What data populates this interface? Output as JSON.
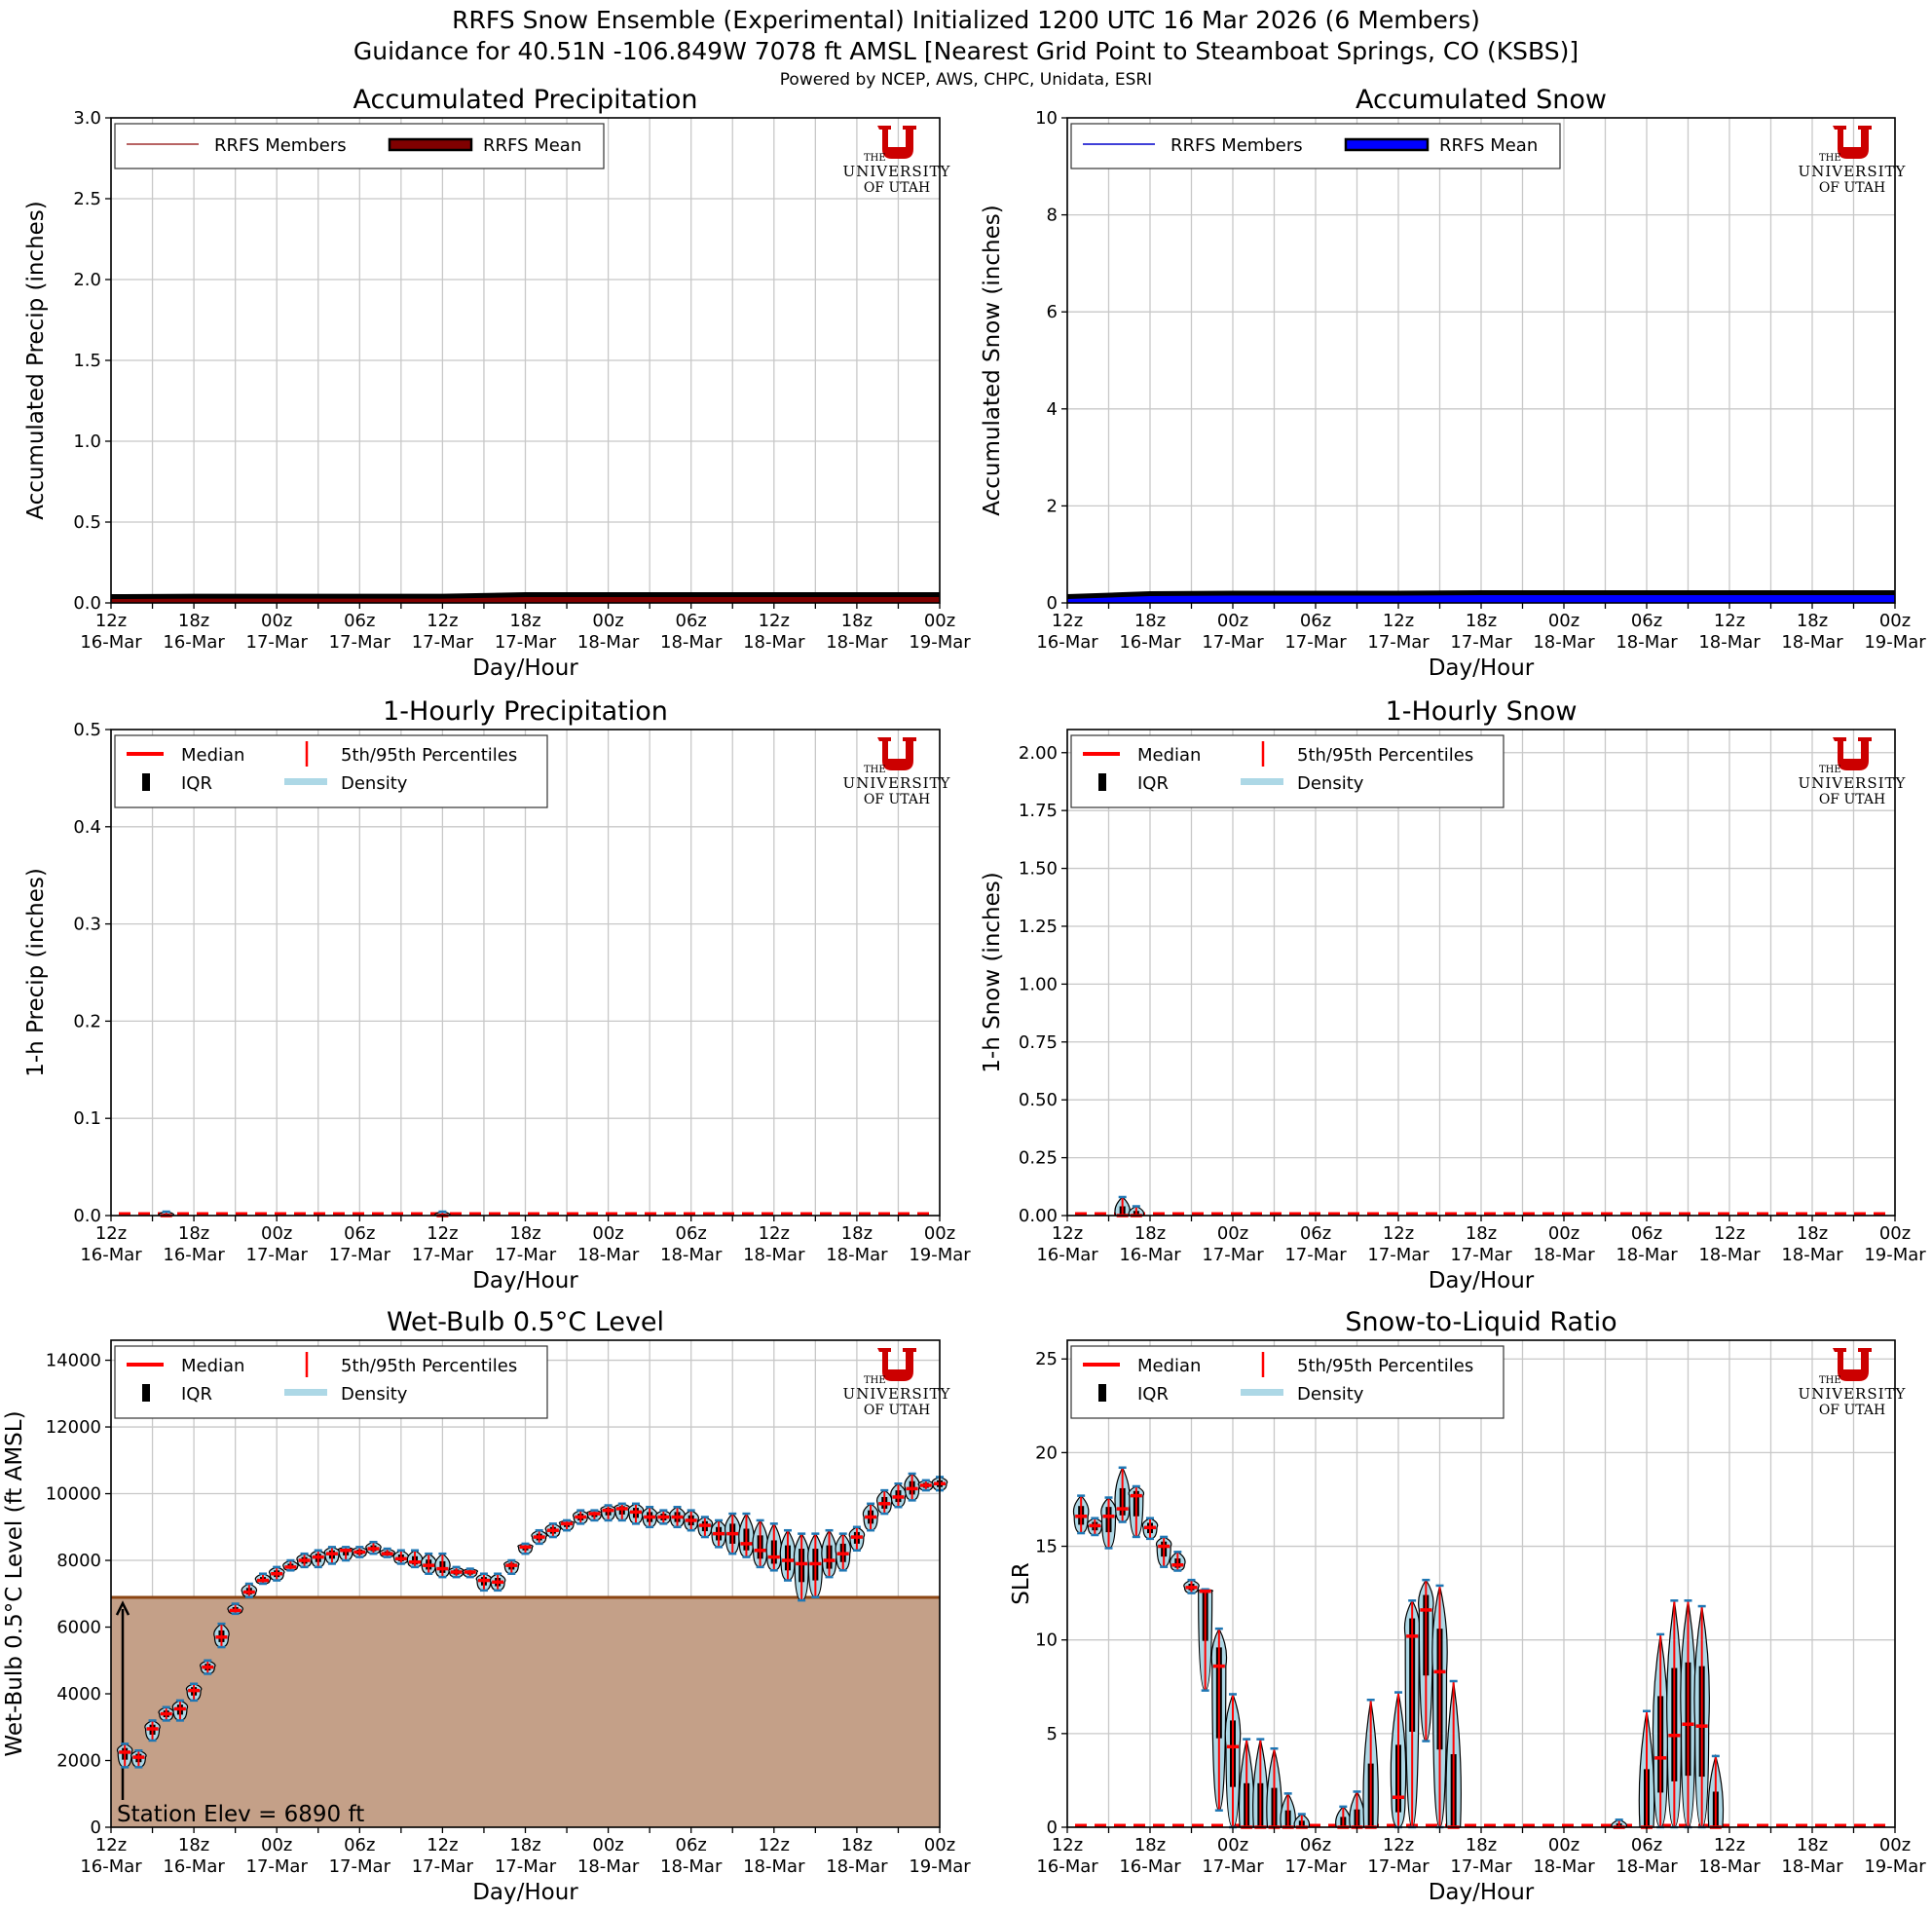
{
  "header": {
    "title_line1": "RRFS Snow Ensemble (Experimental) Initialized 1200 UTC 16 Mar 2026 (6 Members)",
    "title_line2": "Guidance for 40.51N -106.849W 7078 ft AMSL [Nearest Grid Point to Steamboat Springs, CO (KSBS)]",
    "credits": "Powered by NCEP, AWS, CHPC, Unidata, ESRI"
  },
  "logo": {
    "the": "THE",
    "university": "UNIVERSITY",
    "of_utah": "OF UTAH",
    "color": "#cc0000"
  },
  "x_axis": {
    "label": "Day/Hour",
    "ticks": [
      {
        "hour": "12z",
        "day": "16-Mar"
      },
      {
        "hour": "18z",
        "day": "16-Mar"
      },
      {
        "hour": "00z",
        "day": "17-Mar"
      },
      {
        "hour": "06z",
        "day": "17-Mar"
      },
      {
        "hour": "12z",
        "day": "17-Mar"
      },
      {
        "hour": "18z",
        "day": "17-Mar"
      },
      {
        "hour": "00z",
        "day": "18-Mar"
      },
      {
        "hour": "06z",
        "day": "18-Mar"
      },
      {
        "hour": "12z",
        "day": "18-Mar"
      },
      {
        "hour": "18z",
        "day": "18-Mar"
      },
      {
        "hour": "00z",
        "day": "19-Mar"
      }
    ],
    "range_hours": [
      0,
      60
    ]
  },
  "violin_legend": {
    "median": "Median",
    "percentiles": "5th/95th Percentiles",
    "iqr": "IQR",
    "density": "Density"
  },
  "colors": {
    "precip_mean": "#800000",
    "precip_members": "#a03030",
    "snow_mean": "#0000ff",
    "snow_members": "#0000cc",
    "median": "#ff0000",
    "density": "#add8e6",
    "whisker": "#1f77b4",
    "terrain": "#c4a088",
    "terrain_line": "#8b4513",
    "grid": "#c8c8c8"
  },
  "chart_data": [
    {
      "id": "accum_precip",
      "type": "area",
      "title": "Accumulated Precipitation",
      "xlabel": "Day/Hour",
      "ylabel": "Accumulated Precip (inches)",
      "ylim": [
        0,
        3.0
      ],
      "yticks": [
        "0.0",
        "0.5",
        "1.0",
        "1.5",
        "2.0",
        "2.5",
        "3.0"
      ],
      "ytick_values": [
        0,
        0.5,
        1,
        1.5,
        2,
        2.5,
        3
      ],
      "legend": [
        "RRFS Members",
        "RRFS Mean"
      ],
      "series": [
        {
          "name": "RRFS Mean",
          "x": [
            0,
            6,
            12,
            18,
            24,
            30,
            36,
            42,
            48,
            54,
            60
          ],
          "values": [
            0.0,
            0.02,
            0.02,
            0.02,
            0.02,
            0.03,
            0.03,
            0.03,
            0.03,
            0.03,
            0.03
          ]
        }
      ]
    },
    {
      "id": "accum_snow",
      "type": "area",
      "title": "Accumulated Snow",
      "xlabel": "Day/Hour",
      "ylabel": "Accumulated Snow (inches)",
      "ylim": [
        0,
        10
      ],
      "yticks": [
        "0",
        "2",
        "4",
        "6",
        "8",
        "10"
      ],
      "ytick_values": [
        0,
        2,
        4,
        6,
        8,
        10
      ],
      "legend": [
        "RRFS Members",
        "RRFS Mean"
      ],
      "series": [
        {
          "name": "RRFS Mean",
          "x": [
            0,
            4,
            6,
            12,
            18,
            24,
            30,
            36,
            42,
            48,
            54,
            60
          ],
          "values": [
            0.0,
            0.1,
            0.12,
            0.13,
            0.13,
            0.13,
            0.14,
            0.14,
            0.14,
            0.14,
            0.14,
            0.14
          ]
        }
      ]
    },
    {
      "id": "hourly_precip",
      "type": "violin",
      "title": "1-Hourly Precipitation",
      "xlabel": "Day/Hour",
      "ylabel": "1-h Precip (inches)",
      "ylim": [
        0,
        0.5
      ],
      "yticks": [
        "0.0",
        "0.1",
        "0.2",
        "0.3",
        "0.4",
        "0.5"
      ],
      "ytick_values": [
        0,
        0.1,
        0.2,
        0.3,
        0.4,
        0.5
      ],
      "legend": [
        "Median",
        "5th/95th Percentiles",
        "IQR",
        "Density"
      ],
      "points": [
        {
          "x": 4,
          "median": 0,
          "p95": 0.004
        },
        {
          "x": 5,
          "median": 0,
          "p95": 0.002
        },
        {
          "x": 23,
          "median": 0,
          "p95": 0.002
        },
        {
          "x": 24,
          "median": 0,
          "p95": 0.004
        }
      ]
    },
    {
      "id": "hourly_snow",
      "type": "violin",
      "title": "1-Hourly Snow",
      "xlabel": "Day/Hour",
      "ylabel": "1-h Snow (inches)",
      "ylim": [
        0,
        2.1
      ],
      "yticks": [
        "0.00",
        "0.25",
        "0.50",
        "0.75",
        "1.00",
        "1.25",
        "1.50",
        "1.75",
        "2.00"
      ],
      "ytick_values": [
        0,
        0.25,
        0.5,
        0.75,
        1.0,
        1.25,
        1.5,
        1.75,
        2.0
      ],
      "legend": [
        "Median",
        "5th/95th Percentiles",
        "IQR",
        "Density"
      ],
      "points": [
        {
          "x": 4,
          "median": 0,
          "p95": 0.08
        },
        {
          "x": 5,
          "median": 0,
          "p95": 0.04
        }
      ]
    },
    {
      "id": "wetbulb",
      "type": "violin",
      "title": "Wet-Bulb 0.5°C Level",
      "xlabel": "Day/Hour",
      "ylabel": "Wet-Bulb 0.5°C Level (ft AMSL)",
      "ylim": [
        0,
        14600
      ],
      "yticks": [
        "0",
        "2000",
        "4000",
        "6000",
        "8000",
        "10000",
        "12000",
        "14000"
      ],
      "ytick_values": [
        0,
        2000,
        4000,
        6000,
        8000,
        10000,
        12000,
        14000
      ],
      "legend": [
        "Median",
        "5th/95th Percentiles",
        "IQR",
        "Density"
      ],
      "annotation": "Station Elev = 6890 ft",
      "station_elev": 6890,
      "points": [
        {
          "x": 1,
          "median": 2250,
          "lo": 1800,
          "hi": 2500
        },
        {
          "x": 2,
          "median": 2100,
          "lo": 1800,
          "hi": 2300
        },
        {
          "x": 3,
          "median": 2950,
          "lo": 2600,
          "hi": 3200
        },
        {
          "x": 4,
          "median": 3400,
          "lo": 3200,
          "hi": 3600
        },
        {
          "x": 5,
          "median": 3550,
          "lo": 3200,
          "hi": 3800
        },
        {
          "x": 6,
          "median": 4100,
          "lo": 3800,
          "hi": 4300
        },
        {
          "x": 7,
          "median": 4800,
          "lo": 4600,
          "hi": 5000
        },
        {
          "x": 8,
          "median": 5700,
          "lo": 5400,
          "hi": 6100
        },
        {
          "x": 9,
          "median": 6500,
          "lo": 6400,
          "hi": 6700
        },
        {
          "x": 10,
          "median": 7050,
          "lo": 6900,
          "hi": 7300
        },
        {
          "x": 11,
          "median": 7400,
          "lo": 7300,
          "hi": 7600
        },
        {
          "x": 12,
          "median": 7600,
          "lo": 7400,
          "hi": 7800
        },
        {
          "x": 13,
          "median": 7800,
          "lo": 7700,
          "hi": 8000
        },
        {
          "x": 14,
          "median": 8000,
          "lo": 7800,
          "hi": 8200
        },
        {
          "x": 15,
          "median": 8100,
          "lo": 7800,
          "hi": 8300
        },
        {
          "x": 16,
          "median": 8200,
          "lo": 7900,
          "hi": 8400
        },
        {
          "x": 17,
          "median": 8300,
          "lo": 8000,
          "hi": 8400
        },
        {
          "x": 18,
          "median": 8250,
          "lo": 8100,
          "hi": 8400
        },
        {
          "x": 19,
          "median": 8350,
          "lo": 8200,
          "hi": 8550
        },
        {
          "x": 20,
          "median": 8200,
          "lo": 8100,
          "hi": 8350
        },
        {
          "x": 21,
          "median": 8050,
          "lo": 7900,
          "hi": 8300
        },
        {
          "x": 22,
          "median": 7950,
          "lo": 7800,
          "hi": 8300
        },
        {
          "x": 23,
          "median": 7850,
          "lo": 7600,
          "hi": 8200
        },
        {
          "x": 24,
          "median": 7750,
          "lo": 7500,
          "hi": 8200
        },
        {
          "x": 25,
          "median": 7650,
          "lo": 7500,
          "hi": 7800
        },
        {
          "x": 26,
          "median": 7650,
          "lo": 7500,
          "hi": 7750
        },
        {
          "x": 27,
          "median": 7400,
          "lo": 7100,
          "hi": 7600
        },
        {
          "x": 28,
          "median": 7350,
          "lo": 7100,
          "hi": 7600
        },
        {
          "x": 29,
          "median": 7850,
          "lo": 7600,
          "hi": 8000
        },
        {
          "x": 30,
          "median": 8400,
          "lo": 8200,
          "hi": 8500
        },
        {
          "x": 31,
          "median": 8700,
          "lo": 8500,
          "hi": 8900
        },
        {
          "x": 32,
          "median": 8900,
          "lo": 8700,
          "hi": 9100
        },
        {
          "x": 33,
          "median": 9100,
          "lo": 8900,
          "hi": 9200
        },
        {
          "x": 34,
          "median": 9300,
          "lo": 9100,
          "hi": 9500
        },
        {
          "x": 35,
          "median": 9400,
          "lo": 9200,
          "hi": 9500
        },
        {
          "x": 36,
          "median": 9500,
          "lo": 9200,
          "hi": 9650
        },
        {
          "x": 37,
          "median": 9550,
          "lo": 9200,
          "hi": 9700
        },
        {
          "x": 38,
          "median": 9450,
          "lo": 9100,
          "hi": 9700
        },
        {
          "x": 39,
          "median": 9300,
          "lo": 9000,
          "hi": 9600
        },
        {
          "x": 40,
          "median": 9300,
          "lo": 9100,
          "hi": 9500
        },
        {
          "x": 41,
          "median": 9300,
          "lo": 9000,
          "hi": 9600
        },
        {
          "x": 42,
          "median": 9200,
          "lo": 8900,
          "hi": 9500
        },
        {
          "x": 43,
          "median": 9050,
          "lo": 8700,
          "hi": 9300
        },
        {
          "x": 44,
          "median": 8800,
          "lo": 8400,
          "hi": 9200
        },
        {
          "x": 45,
          "median": 8800,
          "lo": 8200,
          "hi": 9400
        },
        {
          "x": 46,
          "median": 8500,
          "lo": 8100,
          "hi": 9400
        },
        {
          "x": 47,
          "median": 8300,
          "lo": 7800,
          "hi": 9200
        },
        {
          "x": 48,
          "median": 8100,
          "lo": 7700,
          "hi": 9100
        },
        {
          "x": 49,
          "median": 8000,
          "lo": 7400,
          "hi": 8900
        },
        {
          "x": 50,
          "median": 7900,
          "lo": 6800,
          "hi": 8800
        },
        {
          "x": 51,
          "median": 7900,
          "lo": 6900,
          "hi": 8800
        },
        {
          "x": 52,
          "median": 8000,
          "lo": 7500,
          "hi": 8900
        },
        {
          "x": 53,
          "median": 8200,
          "lo": 7700,
          "hi": 8800
        },
        {
          "x": 54,
          "median": 8700,
          "lo": 8300,
          "hi": 9000
        },
        {
          "x": 55,
          "median": 9300,
          "lo": 8900,
          "hi": 9700
        },
        {
          "x": 56,
          "median": 9700,
          "lo": 9400,
          "hi": 10100
        },
        {
          "x": 57,
          "median": 9900,
          "lo": 9600,
          "hi": 10300
        },
        {
          "x": 58,
          "median": 10150,
          "lo": 9800,
          "hi": 10600
        },
        {
          "x": 59,
          "median": 10250,
          "lo": 10100,
          "hi": 10400
        },
        {
          "x": 60,
          "median": 10300,
          "lo": 10100,
          "hi": 10500
        }
      ]
    },
    {
      "id": "slr",
      "type": "violin",
      "title": "Snow-to-Liquid Ratio",
      "xlabel": "Day/Hour",
      "ylabel": "SLR",
      "ylim": [
        0,
        26
      ],
      "yticks": [
        "0",
        "5",
        "10",
        "15",
        "20",
        "25"
      ],
      "ytick_values": [
        0,
        5,
        10,
        15,
        20,
        25
      ],
      "legend": [
        "Median",
        "5th/95th Percentiles",
        "IQR",
        "Density"
      ],
      "points": [
        {
          "x": 1,
          "median": 16.6,
          "lo": 15.7,
          "hi": 17.7
        },
        {
          "x": 2,
          "median": 16.1,
          "lo": 15.6,
          "hi": 16.5
        },
        {
          "x": 3,
          "median": 16.6,
          "lo": 14.9,
          "hi": 17.6
        },
        {
          "x": 4,
          "median": 17.0,
          "lo": 16.3,
          "hi": 19.2
        },
        {
          "x": 5,
          "median": 17.7,
          "lo": 15.5,
          "hi": 18.2
        },
        {
          "x": 6,
          "median": 16.0,
          "lo": 15.4,
          "hi": 16.5
        },
        {
          "x": 7,
          "median": 15.0,
          "lo": 13.9,
          "hi": 15.5
        },
        {
          "x": 8,
          "median": 14.0,
          "lo": 13.7,
          "hi": 14.7
        },
        {
          "x": 9,
          "median": 12.8,
          "lo": 12.5,
          "hi": 13.2
        },
        {
          "x": 10,
          "median": 12.6,
          "lo": 7.3,
          "hi": 12.7
        },
        {
          "x": 11,
          "median": 8.6,
          "lo": 0.9,
          "hi": 10.6
        },
        {
          "x": 12,
          "median": 4.3,
          "lo": 0,
          "hi": 7.1
        },
        {
          "x": 13,
          "median": 0,
          "lo": 0,
          "hi": 4.7
        },
        {
          "x": 14,
          "median": 0,
          "lo": 0,
          "hi": 4.7
        },
        {
          "x": 15,
          "median": 0,
          "lo": 0,
          "hi": 4.2
        },
        {
          "x": 16,
          "median": 0,
          "lo": 0,
          "hi": 1.8
        },
        {
          "x": 17,
          "median": 0,
          "lo": 0,
          "hi": 0.7
        },
        {
          "x": 18,
          "median": 0,
          "lo": 0,
          "hi": 0
        },
        {
          "x": 19,
          "median": 0,
          "lo": 0,
          "hi": 0
        },
        {
          "x": 20,
          "median": 0,
          "lo": 0,
          "hi": 1.1
        },
        {
          "x": 21,
          "median": 0,
          "lo": 0,
          "hi": 1.9
        },
        {
          "x": 22,
          "median": 0,
          "lo": 0,
          "hi": 6.8
        },
        {
          "x": 23,
          "median": 0,
          "lo": 0,
          "hi": 0
        },
        {
          "x": 24,
          "median": 1.6,
          "lo": 0,
          "hi": 7.2
        },
        {
          "x": 25,
          "median": 10.2,
          "lo": 0,
          "hi": 12.1
        },
        {
          "x": 26,
          "median": 11.6,
          "lo": 4.6,
          "hi": 13.2
        },
        {
          "x": 27,
          "median": 8.3,
          "lo": 0,
          "hi": 12.9
        },
        {
          "x": 28,
          "median": 0,
          "lo": 0,
          "hi": 7.8
        },
        {
          "x": 29,
          "median": 0,
          "lo": 0,
          "hi": 0
        },
        {
          "x": 40,
          "median": 0,
          "lo": 0,
          "hi": 0.4
        },
        {
          "x": 42,
          "median": 0,
          "lo": 0,
          "hi": 6.2
        },
        {
          "x": 43,
          "median": 3.7,
          "lo": 0,
          "hi": 10.3
        },
        {
          "x": 44,
          "median": 4.9,
          "lo": 0,
          "hi": 12.1
        },
        {
          "x": 45,
          "median": 5.5,
          "lo": 0,
          "hi": 12.1
        },
        {
          "x": 46,
          "median": 5.4,
          "lo": 0,
          "hi": 11.8
        },
        {
          "x": 47,
          "median": 0,
          "lo": 0,
          "hi": 3.8
        }
      ]
    }
  ]
}
